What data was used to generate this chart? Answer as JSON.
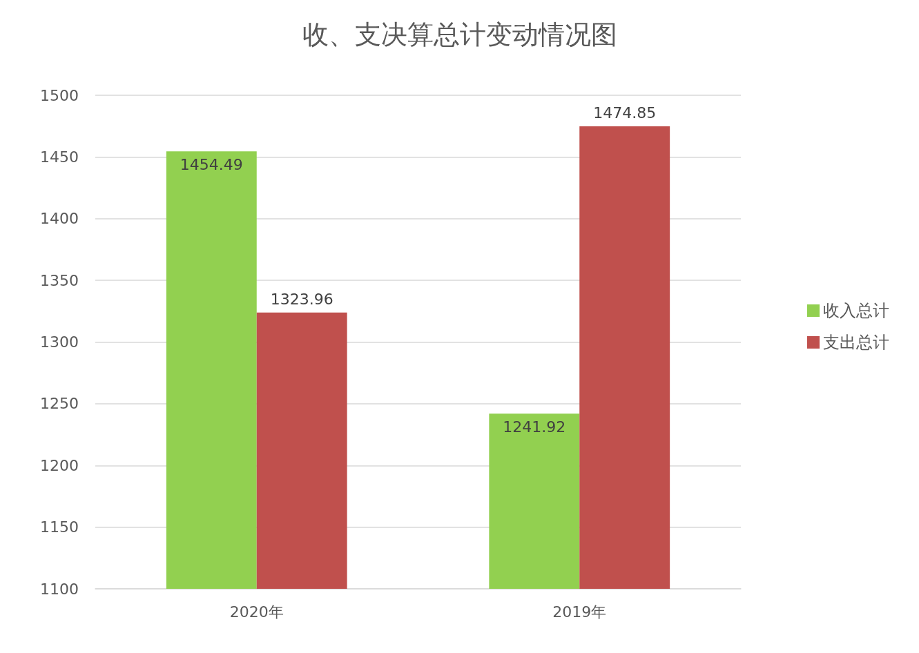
{
  "chart_data": {
    "type": "bar",
    "title": "收、支决算总计变动情况图",
    "categories": [
      "2020年",
      "2019年"
    ],
    "series": [
      {
        "name": "收入总计",
        "color": "#92d050",
        "values": [
          1454.49,
          1241.92
        ]
      },
      {
        "name": "支出总计",
        "color": "#c0504d",
        "values": [
          1323.96,
          1474.85
        ]
      }
    ],
    "ylim": [
      1100,
      1500
    ],
    "yticks": [
      1100,
      1150,
      1200,
      1250,
      1300,
      1350,
      1400,
      1450,
      1500
    ],
    "grid": "y",
    "legend": "right",
    "data_labels": true
  }
}
